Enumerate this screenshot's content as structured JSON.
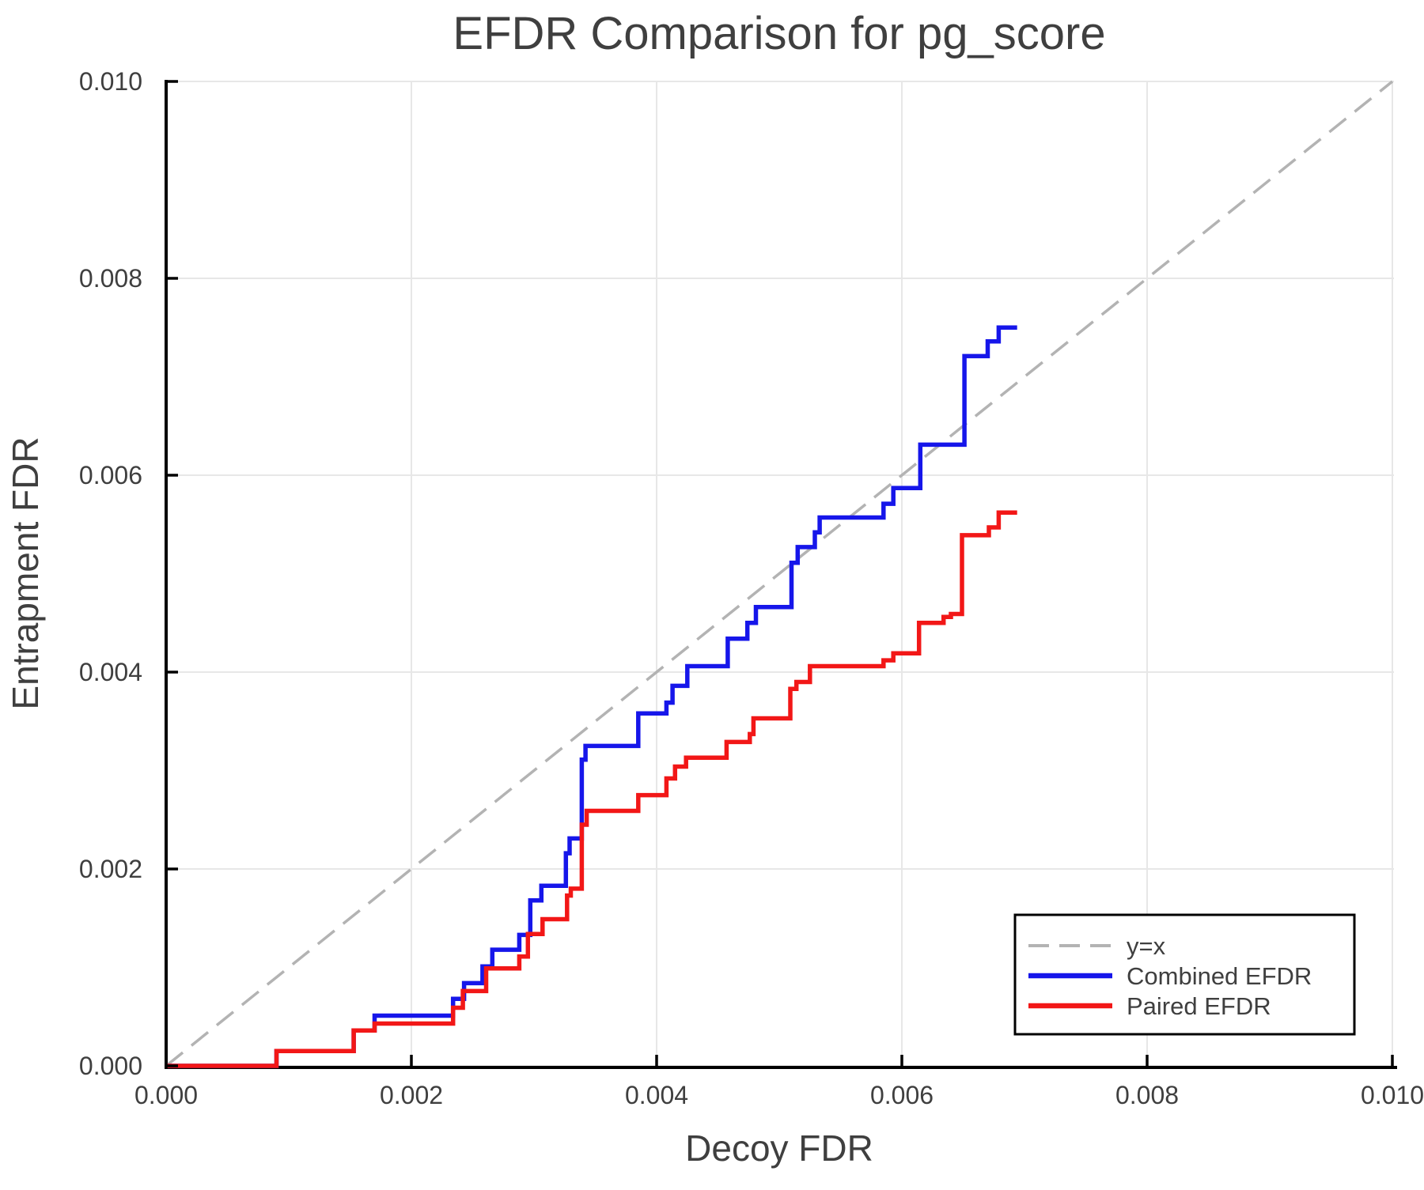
{
  "chart_data": {
    "type": "line",
    "title": "EFDR Comparison for pg_score",
    "xlabel": "Decoy FDR",
    "ylabel": "Entrapment FDR",
    "xlim": [
      0,
      0.01
    ],
    "ylim": [
      0,
      0.01
    ],
    "grid": true,
    "xticks": {
      "values": [
        0,
        0.002,
        0.004,
        0.006,
        0.008,
        0.01
      ],
      "labels": [
        "0.000",
        "0.002",
        "0.004",
        "0.006",
        "0.008",
        "0.010"
      ]
    },
    "yticks": {
      "values": [
        0,
        0.002,
        0.004,
        0.006,
        0.008,
        0.01
      ],
      "labels": [
        "0.000",
        "0.002",
        "0.004",
        "0.006",
        "0.008",
        "0.010"
      ]
    },
    "reference_line": {
      "label": "y=x",
      "start": [
        0,
        0
      ],
      "end": [
        0.01,
        0.01
      ],
      "style": "dashed",
      "color": "#b3b3b3"
    },
    "legend": {
      "position": "lower right",
      "border_color": "#000000",
      "background": "#ffffff"
    },
    "series": [
      {
        "name": "Combined EFDR",
        "color": "#1616ea",
        "draw_style": "steps-post",
        "end_x": 0.00694,
        "points": [
          [
            0.0,
            0.0
          ],
          [
            0.0009,
            0.00015
          ],
          [
            0.00153,
            0.00036
          ],
          [
            0.0017,
            0.00051
          ],
          [
            0.00234,
            0.00068
          ],
          [
            0.00243,
            0.00084
          ],
          [
            0.00258,
            0.00101
          ],
          [
            0.00266,
            0.00118
          ],
          [
            0.00288,
            0.00133
          ],
          [
            0.00297,
            0.00168
          ],
          [
            0.00306,
            0.00183
          ],
          [
            0.00326,
            0.00216
          ],
          [
            0.00329,
            0.00231
          ],
          [
            0.00339,
            0.00311
          ],
          [
            0.00342,
            0.00325
          ],
          [
            0.00385,
            0.00358
          ],
          [
            0.00408,
            0.00369
          ],
          [
            0.00413,
            0.00386
          ],
          [
            0.00425,
            0.00406
          ],
          [
            0.00458,
            0.00434
          ],
          [
            0.00474,
            0.0045
          ],
          [
            0.00481,
            0.00466
          ],
          [
            0.0051,
            0.00511
          ],
          [
            0.00515,
            0.00527
          ],
          [
            0.00529,
            0.00542
          ],
          [
            0.00533,
            0.00557
          ],
          [
            0.00585,
            0.00571
          ],
          [
            0.00593,
            0.00587
          ],
          [
            0.00615,
            0.00631
          ],
          [
            0.00651,
            0.00721
          ],
          [
            0.0067,
            0.00736
          ],
          [
            0.00679,
            0.0075
          ]
        ]
      },
      {
        "name": "Paired EFDR",
        "color": "#f21717",
        "draw_style": "steps-post",
        "end_x": 0.00694,
        "points": [
          [
            0.0,
            0.0
          ],
          [
            0.0009,
            0.00015
          ],
          [
            0.00153,
            0.00036
          ],
          [
            0.0017,
            0.00043
          ],
          [
            0.00234,
            0.00059
          ],
          [
            0.00242,
            0.00076
          ],
          [
            0.00261,
            0.00099
          ],
          [
            0.00288,
            0.00111
          ],
          [
            0.00295,
            0.00134
          ],
          [
            0.00307,
            0.00149
          ],
          [
            0.00327,
            0.00173
          ],
          [
            0.0033,
            0.0018
          ],
          [
            0.00339,
            0.00245
          ],
          [
            0.00343,
            0.00259
          ],
          [
            0.00385,
            0.00275
          ],
          [
            0.00408,
            0.00292
          ],
          [
            0.00415,
            0.00304
          ],
          [
            0.00424,
            0.00313
          ],
          [
            0.00457,
            0.00329
          ],
          [
            0.00476,
            0.00337
          ],
          [
            0.00479,
            0.00353
          ],
          [
            0.00509,
            0.00383
          ],
          [
            0.00514,
            0.0039
          ],
          [
            0.00525,
            0.00406
          ],
          [
            0.00585,
            0.00412
          ],
          [
            0.00593,
            0.00419
          ],
          [
            0.00614,
            0.0045
          ],
          [
            0.00634,
            0.00456
          ],
          [
            0.0064,
            0.00459
          ],
          [
            0.00649,
            0.00539
          ],
          [
            0.00671,
            0.00547
          ],
          [
            0.00679,
            0.00562
          ]
        ]
      }
    ],
    "colors": {
      "background": "#ffffff",
      "text": "#3f3f3f",
      "grid": "#e7e7e7",
      "axis": "#000000"
    }
  }
}
